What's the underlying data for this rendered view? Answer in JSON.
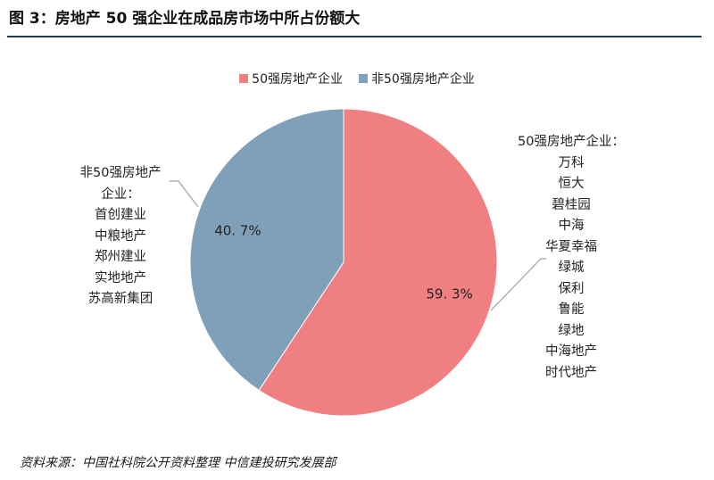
{
  "figure": {
    "title": "图 3：房地产 50 强企业在成品房市场中所占份额大",
    "source": "资料来源：中国社科院公开资料整理    中信建投研究发展部"
  },
  "colors": {
    "title_rule": "#1f3a5f",
    "top50": "#f07f82",
    "non_top50": "#7fa0b8",
    "leader_line": "#a0a0a0"
  },
  "chart_data": {
    "type": "pie",
    "legend_position": "top",
    "slices": [
      {
        "label": "50强房地产企业",
        "value": 59.3,
        "data_label": "59. 3%",
        "color": "#f07f82"
      },
      {
        "label": "非50强房地产企业",
        "value": 40.7,
        "data_label": "40. 7%",
        "color": "#7fa0b8"
      }
    ],
    "annotations": {
      "top50": {
        "lines": [
          "50强房地产企业：",
          "万科",
          "恒大",
          "碧桂园",
          "中海",
          "华夏幸福",
          "绿城",
          "保利",
          "鲁能",
          "绿地",
          "中海地产",
          "时代地产"
        ]
      },
      "non_top50": {
        "lines": [
          "非50强房地产",
          "企业：",
          "首创建业",
          "中粮地产",
          "郑州建业",
          "实地地产",
          "苏高新集团"
        ]
      }
    }
  }
}
